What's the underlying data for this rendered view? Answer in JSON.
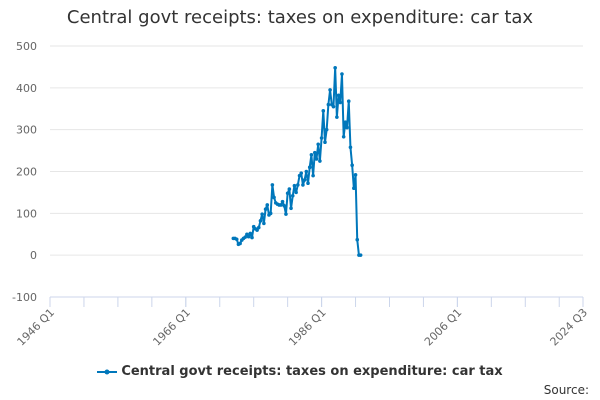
{
  "chart_data": {
    "type": "line",
    "title": "Central govt receipts: taxes on expenditure: car tax",
    "xlabel": "",
    "ylabel": "",
    "ylim": [
      -100,
      500
    ],
    "yticks": [
      -100,
      0,
      100,
      200,
      300,
      400,
      500
    ],
    "xlim": [
      "1946 Q1",
      "2024 Q3"
    ],
    "xticks": [
      "1946 Q1",
      "1966 Q1",
      "1986 Q1",
      "2006 Q1",
      "2024 Q3"
    ],
    "grid": "horizontal",
    "legend_position": "bottom",
    "series": [
      {
        "name": "Central govt receipts: taxes on expenditure: car tax",
        "color": "#0077bb",
        "points": [
          [
            "1973 Q1",
            40
          ],
          [
            "1973 Q2",
            40
          ],
          [
            "1973 Q3",
            38
          ],
          [
            "1973 Q4",
            26
          ],
          [
            "1974 Q1",
            28
          ],
          [
            "1974 Q2",
            36
          ],
          [
            "1974 Q3",
            40
          ],
          [
            "1974 Q4",
            43
          ],
          [
            "1975 Q1",
            50
          ],
          [
            "1975 Q2",
            44
          ],
          [
            "1975 Q3",
            52
          ],
          [
            "1975 Q4",
            42
          ],
          [
            "1976 Q1",
            68
          ],
          [
            "1976 Q2",
            63
          ],
          [
            "1976 Q3",
            60
          ],
          [
            "1976 Q4",
            66
          ],
          [
            "1977 Q1",
            82
          ],
          [
            "1977 Q2",
            98
          ],
          [
            "1977 Q3",
            76
          ],
          [
            "1977 Q4",
            110
          ],
          [
            "1978 Q1",
            120
          ],
          [
            "1978 Q2",
            96
          ],
          [
            "1978 Q3",
            100
          ],
          [
            "1978 Q4",
            168
          ],
          [
            "1979 Q1",
            138
          ],
          [
            "1979 Q2",
            125
          ],
          [
            "1979 Q3",
            122
          ],
          [
            "1979 Q4",
            120
          ],
          [
            "1980 Q1",
            120
          ],
          [
            "1980 Q2",
            128
          ],
          [
            "1980 Q3",
            118
          ],
          [
            "1980 Q4",
            98
          ],
          [
            "1981 Q1",
            148
          ],
          [
            "1981 Q2",
            158
          ],
          [
            "1981 Q3",
            112
          ],
          [
            "1981 Q4",
            142
          ],
          [
            "1982 Q1",
            166
          ],
          [
            "1982 Q2",
            150
          ],
          [
            "1982 Q3",
            168
          ],
          [
            "1982 Q4",
            190
          ],
          [
            "1983 Q1",
            196
          ],
          [
            "1983 Q2",
            168
          ],
          [
            "1983 Q3",
            180
          ],
          [
            "1983 Q4",
            200
          ],
          [
            "1984 Q1",
            172
          ],
          [
            "1984 Q2",
            210
          ],
          [
            "1984 Q3",
            240
          ],
          [
            "1984 Q4",
            190
          ],
          [
            "1985 Q1",
            245
          ],
          [
            "1985 Q2",
            230
          ],
          [
            "1985 Q3",
            265
          ],
          [
            "1985 Q4",
            225
          ],
          [
            "1986 Q1",
            280
          ],
          [
            "1986 Q2",
            345
          ],
          [
            "1986 Q3",
            270
          ],
          [
            "1986 Q4",
            300
          ],
          [
            "1987 Q1",
            360
          ],
          [
            "1987 Q2",
            395
          ],
          [
            "1987 Q3",
            360
          ],
          [
            "1987 Q4",
            355
          ],
          [
            "1988 Q1",
            448
          ],
          [
            "1988 Q2",
            330
          ],
          [
            "1988 Q3",
            382
          ],
          [
            "1988 Q4",
            365
          ],
          [
            "1989 Q1",
            433
          ],
          [
            "1989 Q2",
            283
          ],
          [
            "1989 Q3",
            318
          ],
          [
            "1989 Q4",
            305
          ],
          [
            "1990 Q1",
            368
          ],
          [
            "1990 Q2",
            258
          ],
          [
            "1990 Q3",
            215
          ],
          [
            "1990 Q4",
            160
          ],
          [
            "1991 Q1",
            192
          ],
          [
            "1991 Q2",
            37
          ],
          [
            "1991 Q3",
            0
          ],
          [
            "1991 Q4",
            0
          ]
        ]
      }
    ],
    "source_label": "Source:"
  }
}
